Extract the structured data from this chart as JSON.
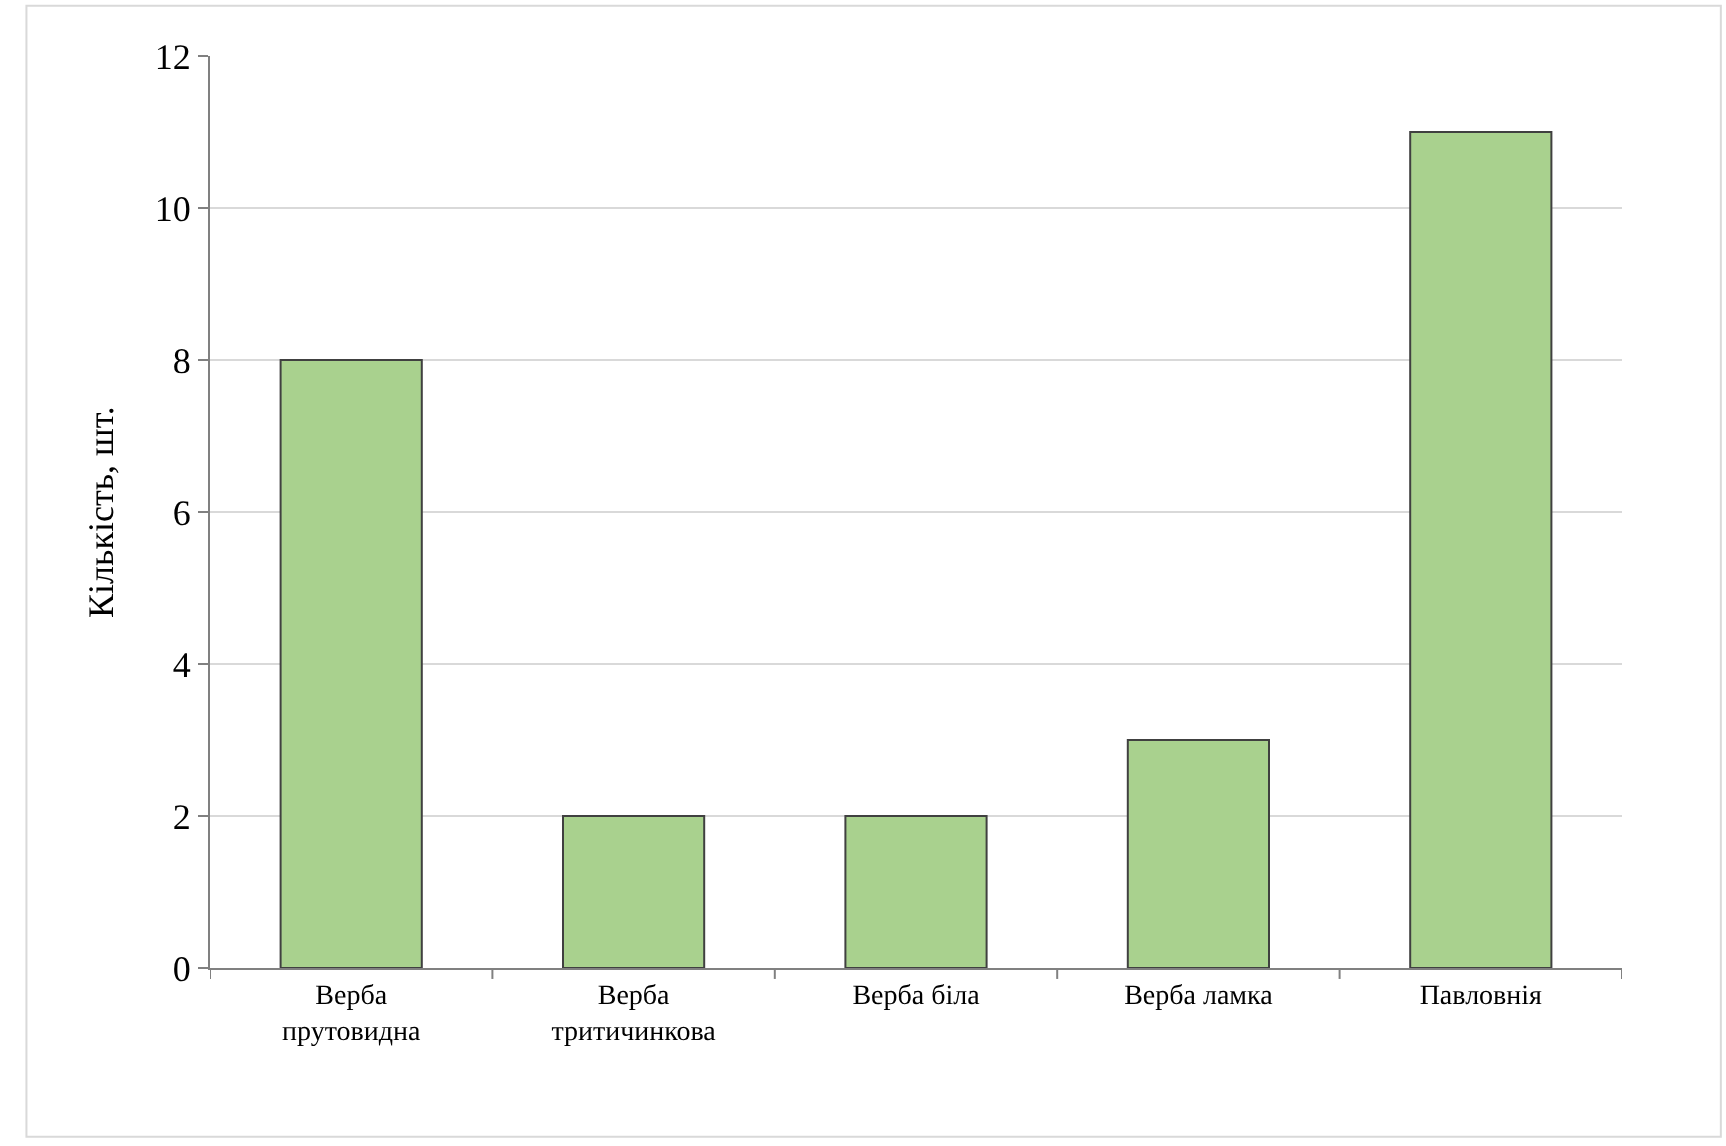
{
  "chart_data": {
    "type": "bar",
    "ylabel": "Кількість, шт.",
    "categories": [
      "Верба прутовидна",
      "Верба тритичинкова",
      "Верба біла",
      "Верба ламка",
      "Павловнія"
    ],
    "values": [
      8,
      2,
      2,
      3,
      11
    ],
    "color": "#a9d18e",
    "ylim": [
      0,
      12
    ],
    "yticks": [
      0,
      2,
      4,
      6,
      8,
      10,
      12
    ],
    "grid": "y"
  }
}
